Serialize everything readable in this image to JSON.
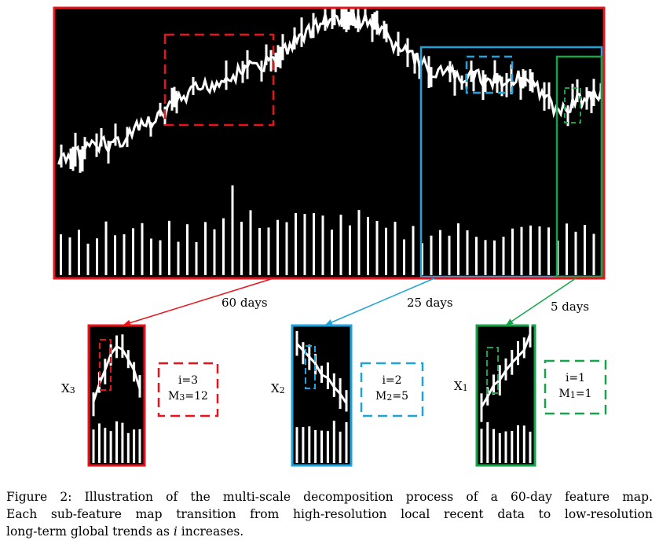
{
  "colors": {
    "red": "#e8131b",
    "blue": "#1ea3dc",
    "green": "#16a34a",
    "background": "#000000",
    "bars": "#ffffff"
  },
  "spans": {
    "red": "60 days",
    "blue": "25 days",
    "green": "5 days"
  },
  "maps": [
    {
      "symbol": "X",
      "sub": "3",
      "i_label": "i=3",
      "m_label": "M",
      "m_sub": "3",
      "m_value": "=12",
      "color": "#e8131b"
    },
    {
      "symbol": "X",
      "sub": "2",
      "i_label": "i=2",
      "m_label": "M",
      "m_sub": "2",
      "m_value": "=5",
      "color": "#1ea3dc"
    },
    {
      "symbol": "X",
      "sub": "1",
      "i_label": "i=1",
      "m_label": "M",
      "m_sub": "1",
      "m_value": "=1",
      "color": "#16a34a"
    }
  ],
  "caption": {
    "line1": "Figure 2: Illustration of the multi-scale decomposition process of a 60-day feature map.",
    "line2": "Each sub-feature map transition from high-resolution local recent data to low-resolution",
    "line3_prefix": "long-term global trends as ",
    "line3_var": "i",
    "line3_suffix": " increases."
  }
}
